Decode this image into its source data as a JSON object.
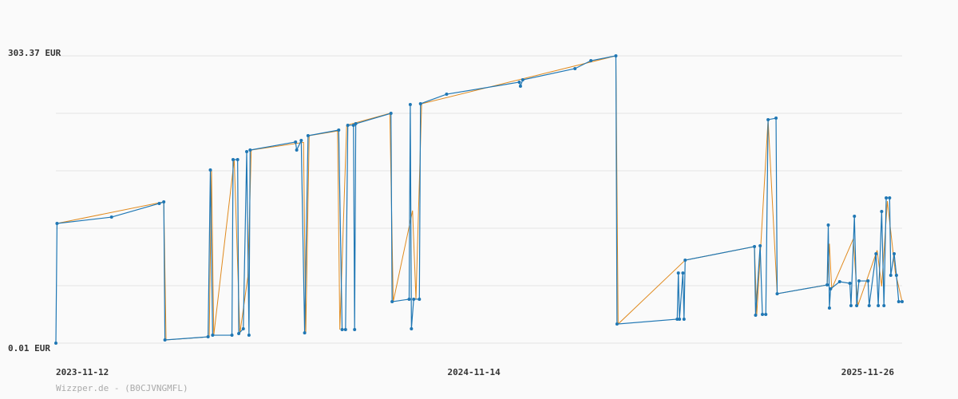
{
  "chart_data": {
    "type": "line",
    "footer": "Wizzper.de - (B0CJVNGMFL)",
    "xlim": [
      "2023-11-12",
      "2025-11-26"
    ],
    "xticks": [
      "2023-11-12",
      "2024-11-14",
      "2025-11-26"
    ],
    "ylim": [
      0.01,
      303.37
    ],
    "yticks": [
      {
        "value": 0.01,
        "label": "0.01 EUR"
      },
      {
        "value": 60.68,
        "label": null
      },
      {
        "value": 121.35,
        "label": null
      },
      {
        "value": 182.03,
        "label": null
      },
      {
        "value": 242.7,
        "label": null
      },
      {
        "value": 303.37,
        "label": "303.37 EUR"
      }
    ],
    "grid": true,
    "series": [
      {
        "color": "#e08a1e",
        "x": [
          "2023-11-13",
          "2024-02-15",
          "2024-02-17",
          "2024-03-26",
          "2024-03-28",
          "2024-03-30",
          "2024-04-17",
          "2024-04-22",
          "2024-04-29",
          "2024-05-02",
          "2024-06-17",
          "2024-06-19",
          "2024-06-22",
          "2024-07-17",
          "2024-07-19",
          "2024-07-25",
          "2024-09-01",
          "2024-09-04",
          "2024-09-21",
          "2024-09-24",
          "2024-09-29",
          "2025-03-19",
          "2025-03-21",
          "2025-05-19",
          "2025-07-19",
          "2025-07-21",
          "2025-07-31",
          "2025-08-08",
          "2025-09-21",
          "2025-09-23",
          "2025-09-25",
          "2025-10-14",
          "2025-10-18",
          "2025-11-04",
          "2025-11-08",
          "2025-11-13",
          "2025-11-20",
          "2025-11-26"
        ],
        "values": [
          126.4,
          149.2,
          3.4,
          6.7,
          182.9,
          8.4,
          193.8,
          10.1,
          70.0,
          203.9,
          212.0,
          10.9,
          219.1,
          224.0,
          14.3,
          230.1,
          242.7,
          43.8,
          140.0,
          46.4,
          252.8,
          303.4,
          20.2,
          87.6,
          102.0,
          29.5,
          236.0,
          52.2,
          61.5,
          105.0,
          57.3,
          110.0,
          39.6,
          98.0,
          60.0,
          150.0,
          75.0,
          43.8
        ]
      },
      {
        "color": "#1f77b4",
        "x": [
          "2023-11-12",
          "2023-11-13",
          "2023-12-31",
          "2024-02-11",
          "2024-02-15",
          "2024-02-16",
          "2024-03-25",
          "2024-03-27",
          "2024-03-29",
          "2024-04-15",
          "2024-04-16",
          "2024-04-20",
          "2024-04-21",
          "2024-04-25",
          "2024-04-28",
          "2024-04-30",
          "2024-05-01",
          "2024-06-10",
          "2024-06-11",
          "2024-06-15",
          "2024-06-18",
          "2024-06-21",
          "2024-07-18",
          "2024-07-21",
          "2024-07-24",
          "2024-07-26",
          "2024-07-31",
          "2024-08-01",
          "2024-08-02",
          "2024-09-02",
          "2024-09-03",
          "2024-09-18",
          "2024-09-19",
          "2024-09-20",
          "2024-09-22",
          "2024-09-27",
          "2024-09-28",
          "2024-10-21",
          "2024-12-24",
          "2024-12-25",
          "2024-12-27",
          "2025-02-11",
          "2025-02-25",
          "2025-03-19",
          "2025-03-20",
          "2025-05-12",
          "2025-05-13",
          "2025-05-14",
          "2025-05-17",
          "2025-05-18",
          "2025-05-19",
          "2025-07-19",
          "2025-07-20",
          "2025-07-24",
          "2025-07-26",
          "2025-07-29",
          "2025-07-31",
          "2025-08-07",
          "2025-08-08",
          "2025-09-21",
          "2025-09-22",
          "2025-09-23",
          "2025-09-24",
          "2025-10-02",
          "2025-10-11",
          "2025-10-12",
          "2025-10-15",
          "2025-10-17",
          "2025-10-19",
          "2025-10-27",
          "2025-10-28",
          "2025-11-03",
          "2025-11-05",
          "2025-11-08",
          "2025-11-10",
          "2025-11-12",
          "2025-11-15",
          "2025-11-16",
          "2025-11-19",
          "2025-11-21",
          "2025-11-23",
          "2025-11-26"
        ],
        "values": [
          0.01,
          126.4,
          133.1,
          147.5,
          149.2,
          3.4,
          6.7,
          182.9,
          8.4,
          8.4,
          193.8,
          193.8,
          10.1,
          15.2,
          202.2,
          8.4,
          203.9,
          212.4,
          203.9,
          214.0,
          10.9,
          219.1,
          225.0,
          14.3,
          14.3,
          230.1,
          230.1,
          14.3,
          231.7,
          242.7,
          43.8,
          46.4,
          252.0,
          15.2,
          46.4,
          46.4,
          252.8,
          262.9,
          275.6,
          271.3,
          278.1,
          289.9,
          298.3,
          303.4,
          20.2,
          25.3,
          74.1,
          25.3,
          74.1,
          25.3,
          87.6,
          102.0,
          29.5,
          102.8,
          30.3,
          30.3,
          236.0,
          237.6,
          52.2,
          61.5,
          124.7,
          37.1,
          57.3,
          64.9,
          63.2,
          39.6,
          134.0,
          39.6,
          65.7,
          65.7,
          39.6,
          94.4,
          39.6,
          139.0,
          39.6,
          153.4,
          153.4,
          71.6,
          94.4,
          71.6,
          43.8,
          43.8
        ]
      }
    ]
  }
}
